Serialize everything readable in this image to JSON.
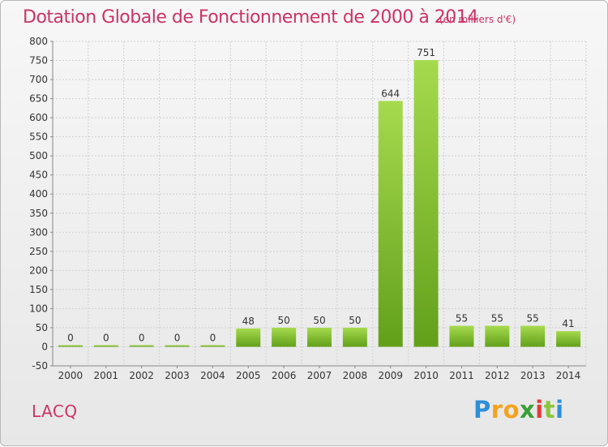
{
  "title": "Dotation Globale de Fonctionnement de 2000 à 2014",
  "unit_note": "(en milliers d'€)",
  "commune": "LACQ",
  "logo_text": "Proxiti",
  "colors": {
    "title": "#cc3366",
    "bar_light": "#a6da4e",
    "bar_dark": "#62a01a",
    "grid": "#d0d0d0"
  },
  "chart_data": {
    "type": "bar",
    "categories": [
      "2000",
      "2001",
      "2002",
      "2003",
      "2004",
      "2005",
      "2006",
      "2007",
      "2008",
      "2009",
      "2010",
      "2011",
      "2012",
      "2013",
      "2014"
    ],
    "values": [
      0,
      0,
      0,
      0,
      0,
      48,
      50,
      50,
      50,
      644,
      751,
      55,
      55,
      55,
      41
    ],
    "title": "Dotation Globale de Fonctionnement de 2000 à 2014",
    "xlabel": "",
    "ylabel": "",
    "ylim": [
      -50,
      800
    ],
    "yticks": [
      -50,
      0,
      50,
      100,
      150,
      200,
      250,
      300,
      350,
      400,
      450,
      500,
      550,
      600,
      650,
      700,
      750,
      800
    ],
    "grid": true,
    "legend": "none"
  }
}
